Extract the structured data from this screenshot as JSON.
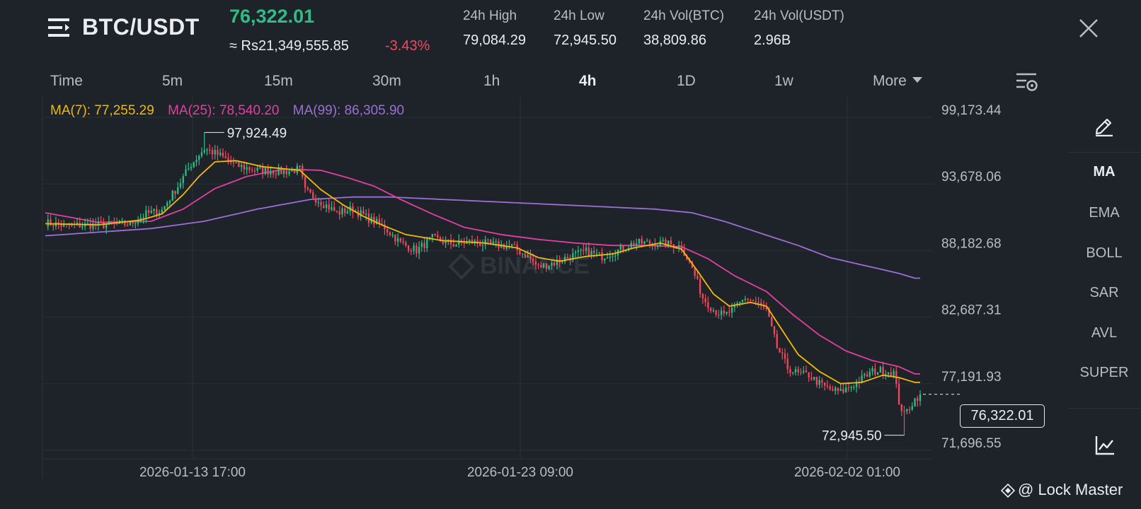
{
  "header": {
    "pair": "BTC/USDT",
    "last_price": "76,322.01",
    "fiat_price": "≈ Rs21,349,555.85",
    "change_pct": "-3.43%",
    "stats": [
      {
        "label": "24h High",
        "value": "79,084.29"
      },
      {
        "label": "24h Low",
        "value": "72,945.50"
      },
      {
        "label": "24h Vol(BTC)",
        "value": "38,809.86"
      },
      {
        "label": "24h Vol(USDT)",
        "value": "2.96B"
      }
    ]
  },
  "tabs": [
    "Time",
    "5m",
    "15m",
    "30m",
    "1h",
    "4h",
    "1D",
    "1w",
    "More"
  ],
  "active_tab": "4h",
  "ma_legend": {
    "ma7": "MA(7): 77,255.29",
    "ma25": "MA(25): 78,540.20",
    "ma99": "MA(99): 86,305.90"
  },
  "colors": {
    "up": "#2ebd85",
    "down": "#f6465d",
    "ma7": "#f0b90b",
    "ma25": "#e040a0",
    "ma99": "#9b6fd6",
    "background": "#1e2329"
  },
  "chart_data": {
    "type": "candlestick",
    "price_axis_ticks": [
      "99,173.44",
      "93,678.06",
      "88,182.68",
      "82,687.31",
      "77,191.93",
      "71,696.55"
    ],
    "price_axis_values": [
      99173.44,
      93678.06,
      88182.68,
      82687.31,
      77191.93,
      71696.55
    ],
    "time_axis_labels": [
      "2026-01-13 17:00",
      "2026-01-23 09:00",
      "2026-02-02 01:00"
    ],
    "current_price": "76,322.01",
    "current_price_value": 76322.01,
    "high_annotation": "97,924.49",
    "high_value": 97924.49,
    "low_annotation": "72,945.50",
    "low_value": 72945.5,
    "close_anchors": [
      [
        0,
        90500
      ],
      [
        8,
        90200
      ],
      [
        16,
        90300
      ],
      [
        24,
        90300
      ],
      [
        32,
        90400
      ],
      [
        38,
        91200
      ],
      [
        44,
        91500
      ],
      [
        50,
        93500
      ],
      [
        55,
        95300
      ],
      [
        60,
        96600
      ],
      [
        66,
        96000
      ],
      [
        72,
        95200
      ],
      [
        80,
        94800
      ],
      [
        90,
        94700
      ],
      [
        96,
        94900
      ],
      [
        98,
        93100
      ],
      [
        104,
        92200
      ],
      [
        110,
        91300
      ],
      [
        116,
        91600
      ],
      [
        122,
        90800
      ],
      [
        128,
        90100
      ],
      [
        134,
        88800
      ],
      [
        140,
        88200
      ],
      [
        146,
        89200
      ],
      [
        154,
        88700
      ],
      [
        160,
        88900
      ],
      [
        168,
        88700
      ],
      [
        176,
        88500
      ],
      [
        182,
        87700
      ],
      [
        186,
        86800
      ],
      [
        192,
        87200
      ],
      [
        198,
        87700
      ],
      [
        204,
        88100
      ],
      [
        210,
        87700
      ],
      [
        216,
        88200
      ],
      [
        222,
        88800
      ],
      [
        230,
        88800
      ],
      [
        236,
        88700
      ],
      [
        240,
        88500
      ],
      [
        244,
        86700
      ],
      [
        248,
        84300
      ],
      [
        252,
        83300
      ],
      [
        256,
        82800
      ],
      [
        260,
        83400
      ],
      [
        264,
        84300
      ],
      [
        268,
        83900
      ],
      [
        272,
        83200
      ],
      [
        276,
        80200
      ],
      [
        280,
        78500
      ],
      [
        284,
        78000
      ],
      [
        288,
        77900
      ],
      [
        292,
        77200
      ],
      [
        296,
        76700
      ],
      [
        300,
        76500
      ],
      [
        304,
        77000
      ],
      [
        308,
        77600
      ],
      [
        312,
        78200
      ],
      [
        316,
        78300
      ],
      [
        320,
        78100
      ],
      [
        322,
        75700
      ],
      [
        324,
        74600
      ],
      [
        326,
        75300
      ],
      [
        328,
        75900
      ],
      [
        330,
        76322
      ]
    ],
    "ma7_points": [
      [
        0,
        90400
      ],
      [
        20,
        90300
      ],
      [
        36,
        90700
      ],
      [
        44,
        91200
      ],
      [
        52,
        92800
      ],
      [
        58,
        94300
      ],
      [
        64,
        95500
      ],
      [
        72,
        95600
      ],
      [
        82,
        95100
      ],
      [
        96,
        94800
      ],
      [
        104,
        93200
      ],
      [
        112,
        92000
      ],
      [
        120,
        91000
      ],
      [
        128,
        90200
      ],
      [
        136,
        89500
      ],
      [
        150,
        89000
      ],
      [
        166,
        88800
      ],
      [
        178,
        88400
      ],
      [
        186,
        87600
      ],
      [
        194,
        87300
      ],
      [
        204,
        87700
      ],
      [
        214,
        87900
      ],
      [
        222,
        88400
      ],
      [
        232,
        88800
      ],
      [
        240,
        88300
      ],
      [
        246,
        86500
      ],
      [
        252,
        84600
      ],
      [
        258,
        83600
      ],
      [
        266,
        83900
      ],
      [
        272,
        83600
      ],
      [
        278,
        81600
      ],
      [
        284,
        79600
      ],
      [
        292,
        78200
      ],
      [
        300,
        77200
      ],
      [
        308,
        77300
      ],
      [
        316,
        77900
      ],
      [
        322,
        77700
      ],
      [
        328,
        77300
      ]
    ],
    "ma25_points": [
      [
        0,
        91300
      ],
      [
        20,
        90500
      ],
      [
        40,
        90600
      ],
      [
        52,
        91600
      ],
      [
        64,
        93300
      ],
      [
        76,
        94300
      ],
      [
        90,
        94900
      ],
      [
        104,
        94800
      ],
      [
        114,
        94200
      ],
      [
        124,
        93500
      ],
      [
        134,
        92400
      ],
      [
        146,
        91200
      ],
      [
        158,
        90100
      ],
      [
        172,
        89500
      ],
      [
        186,
        89100
      ],
      [
        200,
        88800
      ],
      [
        214,
        88600
      ],
      [
        228,
        88600
      ],
      [
        240,
        88500
      ],
      [
        250,
        87500
      ],
      [
        260,
        86100
      ],
      [
        272,
        84800
      ],
      [
        282,
        82900
      ],
      [
        292,
        81200
      ],
      [
        302,
        79900
      ],
      [
        312,
        79100
      ],
      [
        322,
        78600
      ],
      [
        328,
        78000
      ]
    ],
    "ma99_points": [
      [
        0,
        89400
      ],
      [
        40,
        90000
      ],
      [
        60,
        90600
      ],
      [
        80,
        91600
      ],
      [
        100,
        92400
      ],
      [
        116,
        92600
      ],
      [
        130,
        92600
      ],
      [
        150,
        92400
      ],
      [
        170,
        92200
      ],
      [
        190,
        92000
      ],
      [
        210,
        91800
      ],
      [
        230,
        91600
      ],
      [
        244,
        91300
      ],
      [
        256,
        90600
      ],
      [
        270,
        89600
      ],
      [
        284,
        88600
      ],
      [
        296,
        87600
      ],
      [
        310,
        86900
      ],
      [
        322,
        86300
      ],
      [
        328,
        85900
      ]
    ]
  },
  "side_menu": [
    "MA",
    "EMA",
    "BOLL",
    "SAR",
    "AVL",
    "SUPER"
  ],
  "side_active": "MA",
  "icons": {
    "menu": "menu-icon",
    "close": "close-icon",
    "settings": "chart-settings-icon",
    "draw": "pencil-icon",
    "indicator": "indicator-chart-icon"
  },
  "watermark": "@ Lock Master",
  "chart_watermark": "BINANCE"
}
